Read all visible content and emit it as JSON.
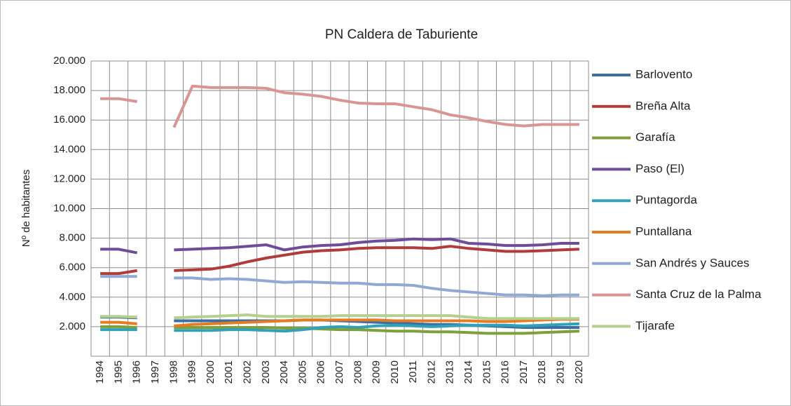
{
  "chart_data": {
    "type": "line",
    "title": "PN Caldera de Taburiente",
    "y_label": "Nº de habitantes",
    "categories": [
      "1994",
      "1995",
      "1996",
      "1997",
      "1998",
      "1999",
      "2000",
      "2001",
      "2002",
      "2003",
      "2004",
      "2005",
      "2006",
      "2007",
      "2008",
      "2009",
      "2010",
      "2011",
      "2012",
      "2013",
      "2014",
      "2015",
      "2016",
      "2017",
      "2018",
      "2019",
      "2020"
    ],
    "ylim": [
      0,
      20000
    ],
    "yticks": [
      {
        "value": 2000,
        "label": "2.000"
      },
      {
        "value": 4000,
        "label": "4.000"
      },
      {
        "value": 6000,
        "label": "6.000"
      },
      {
        "value": 8000,
        "label": "8.000"
      },
      {
        "value": 10000,
        "label": "10.000"
      },
      {
        "value": 12000,
        "label": "12.000"
      },
      {
        "value": 14000,
        "label": "14.000"
      },
      {
        "value": 16000,
        "label": "16.000"
      },
      {
        "value": 18000,
        "label": "18.000"
      },
      {
        "value": 20000,
        "label": "20.000"
      }
    ],
    "grid": true,
    "legend": "right",
    "series": [
      {
        "name": "Barlovento",
        "color": "#3a6ea5",
        "values": [
          2650,
          2650,
          2600,
          null,
          2400,
          2400,
          2400,
          2400,
          2400,
          2400,
          2400,
          2450,
          2450,
          2400,
          2350,
          2300,
          2250,
          2200,
          2150,
          2150,
          2100,
          2050,
          2000,
          1950,
          1950,
          1950,
          1950
        ]
      },
      {
        "name": "Breña Alta",
        "color": "#b03b3a",
        "values": [
          5600,
          5600,
          5800,
          null,
          5800,
          5850,
          5900,
          6100,
          6400,
          6650,
          6850,
          7050,
          7150,
          7200,
          7300,
          7350,
          7350,
          7350,
          7300,
          7450,
          7300,
          7200,
          7100,
          7100,
          7150,
          7200,
          7250
        ]
      },
      {
        "name": "Garafía",
        "color": "#7ea03b",
        "values": [
          2000,
          2000,
          1950,
          null,
          1950,
          1950,
          1950,
          1950,
          1950,
          1950,
          1900,
          1900,
          1850,
          1800,
          1800,
          1750,
          1700,
          1700,
          1650,
          1650,
          1600,
          1550,
          1550,
          1550,
          1600,
          1650,
          1700
        ]
      },
      {
        "name": "Paso (El)",
        "color": "#6f4c9b",
        "values": [
          7250,
          7250,
          7000,
          null,
          7200,
          7250,
          7300,
          7350,
          7450,
          7550,
          7200,
          7400,
          7500,
          7550,
          7700,
          7800,
          7850,
          7950,
          7900,
          7950,
          7650,
          7600,
          7500,
          7500,
          7550,
          7650,
          7650
        ]
      },
      {
        "name": "Puntagorda",
        "color": "#31a2b5",
        "values": [
          1800,
          1800,
          1800,
          null,
          1750,
          1750,
          1750,
          1800,
          1800,
          1750,
          1700,
          1800,
          1950,
          2000,
          1950,
          2050,
          2100,
          2050,
          2000,
          2050,
          2100,
          2100,
          2100,
          2050,
          2100,
          2150,
          2200
        ]
      },
      {
        "name": "Puntallana",
        "color": "#e57c23",
        "values": [
          2300,
          2300,
          2200,
          null,
          2050,
          2150,
          2200,
          2250,
          2300,
          2350,
          2400,
          2450,
          2450,
          2450,
          2450,
          2450,
          2400,
          2400,
          2400,
          2400,
          2400,
          2350,
          2350,
          2400,
          2450,
          2500,
          2500
        ]
      },
      {
        "name": "San Andrés y Sauces",
        "color": "#8fa9d4",
        "values": [
          5400,
          5400,
          5400,
          null,
          5300,
          5300,
          5200,
          5250,
          5200,
          5100,
          5000,
          5050,
          5000,
          4950,
          4950,
          4850,
          4850,
          4800,
          4600,
          4450,
          4350,
          4250,
          4150,
          4150,
          4100,
          4150,
          4150
        ]
      },
      {
        "name": "Santa Cruz de la Palma",
        "color": "#d99594",
        "values": [
          17450,
          17450,
          17250,
          null,
          15500,
          18300,
          18200,
          18200,
          18200,
          18150,
          17850,
          17750,
          17600,
          17350,
          17150,
          17100,
          17100,
          16900,
          16700,
          16350,
          16150,
          15900,
          15700,
          15600,
          15700,
          15700,
          15700
        ]
      },
      {
        "name": "Tijarafe",
        "color": "#b4cf8e",
        "values": [
          2700,
          2700,
          2650,
          null,
          2600,
          2650,
          2700,
          2750,
          2800,
          2700,
          2700,
          2700,
          2700,
          2750,
          2750,
          2750,
          2750,
          2750,
          2750,
          2750,
          2650,
          2550,
          2550,
          2550,
          2550,
          2550,
          2550
        ]
      }
    ]
  }
}
